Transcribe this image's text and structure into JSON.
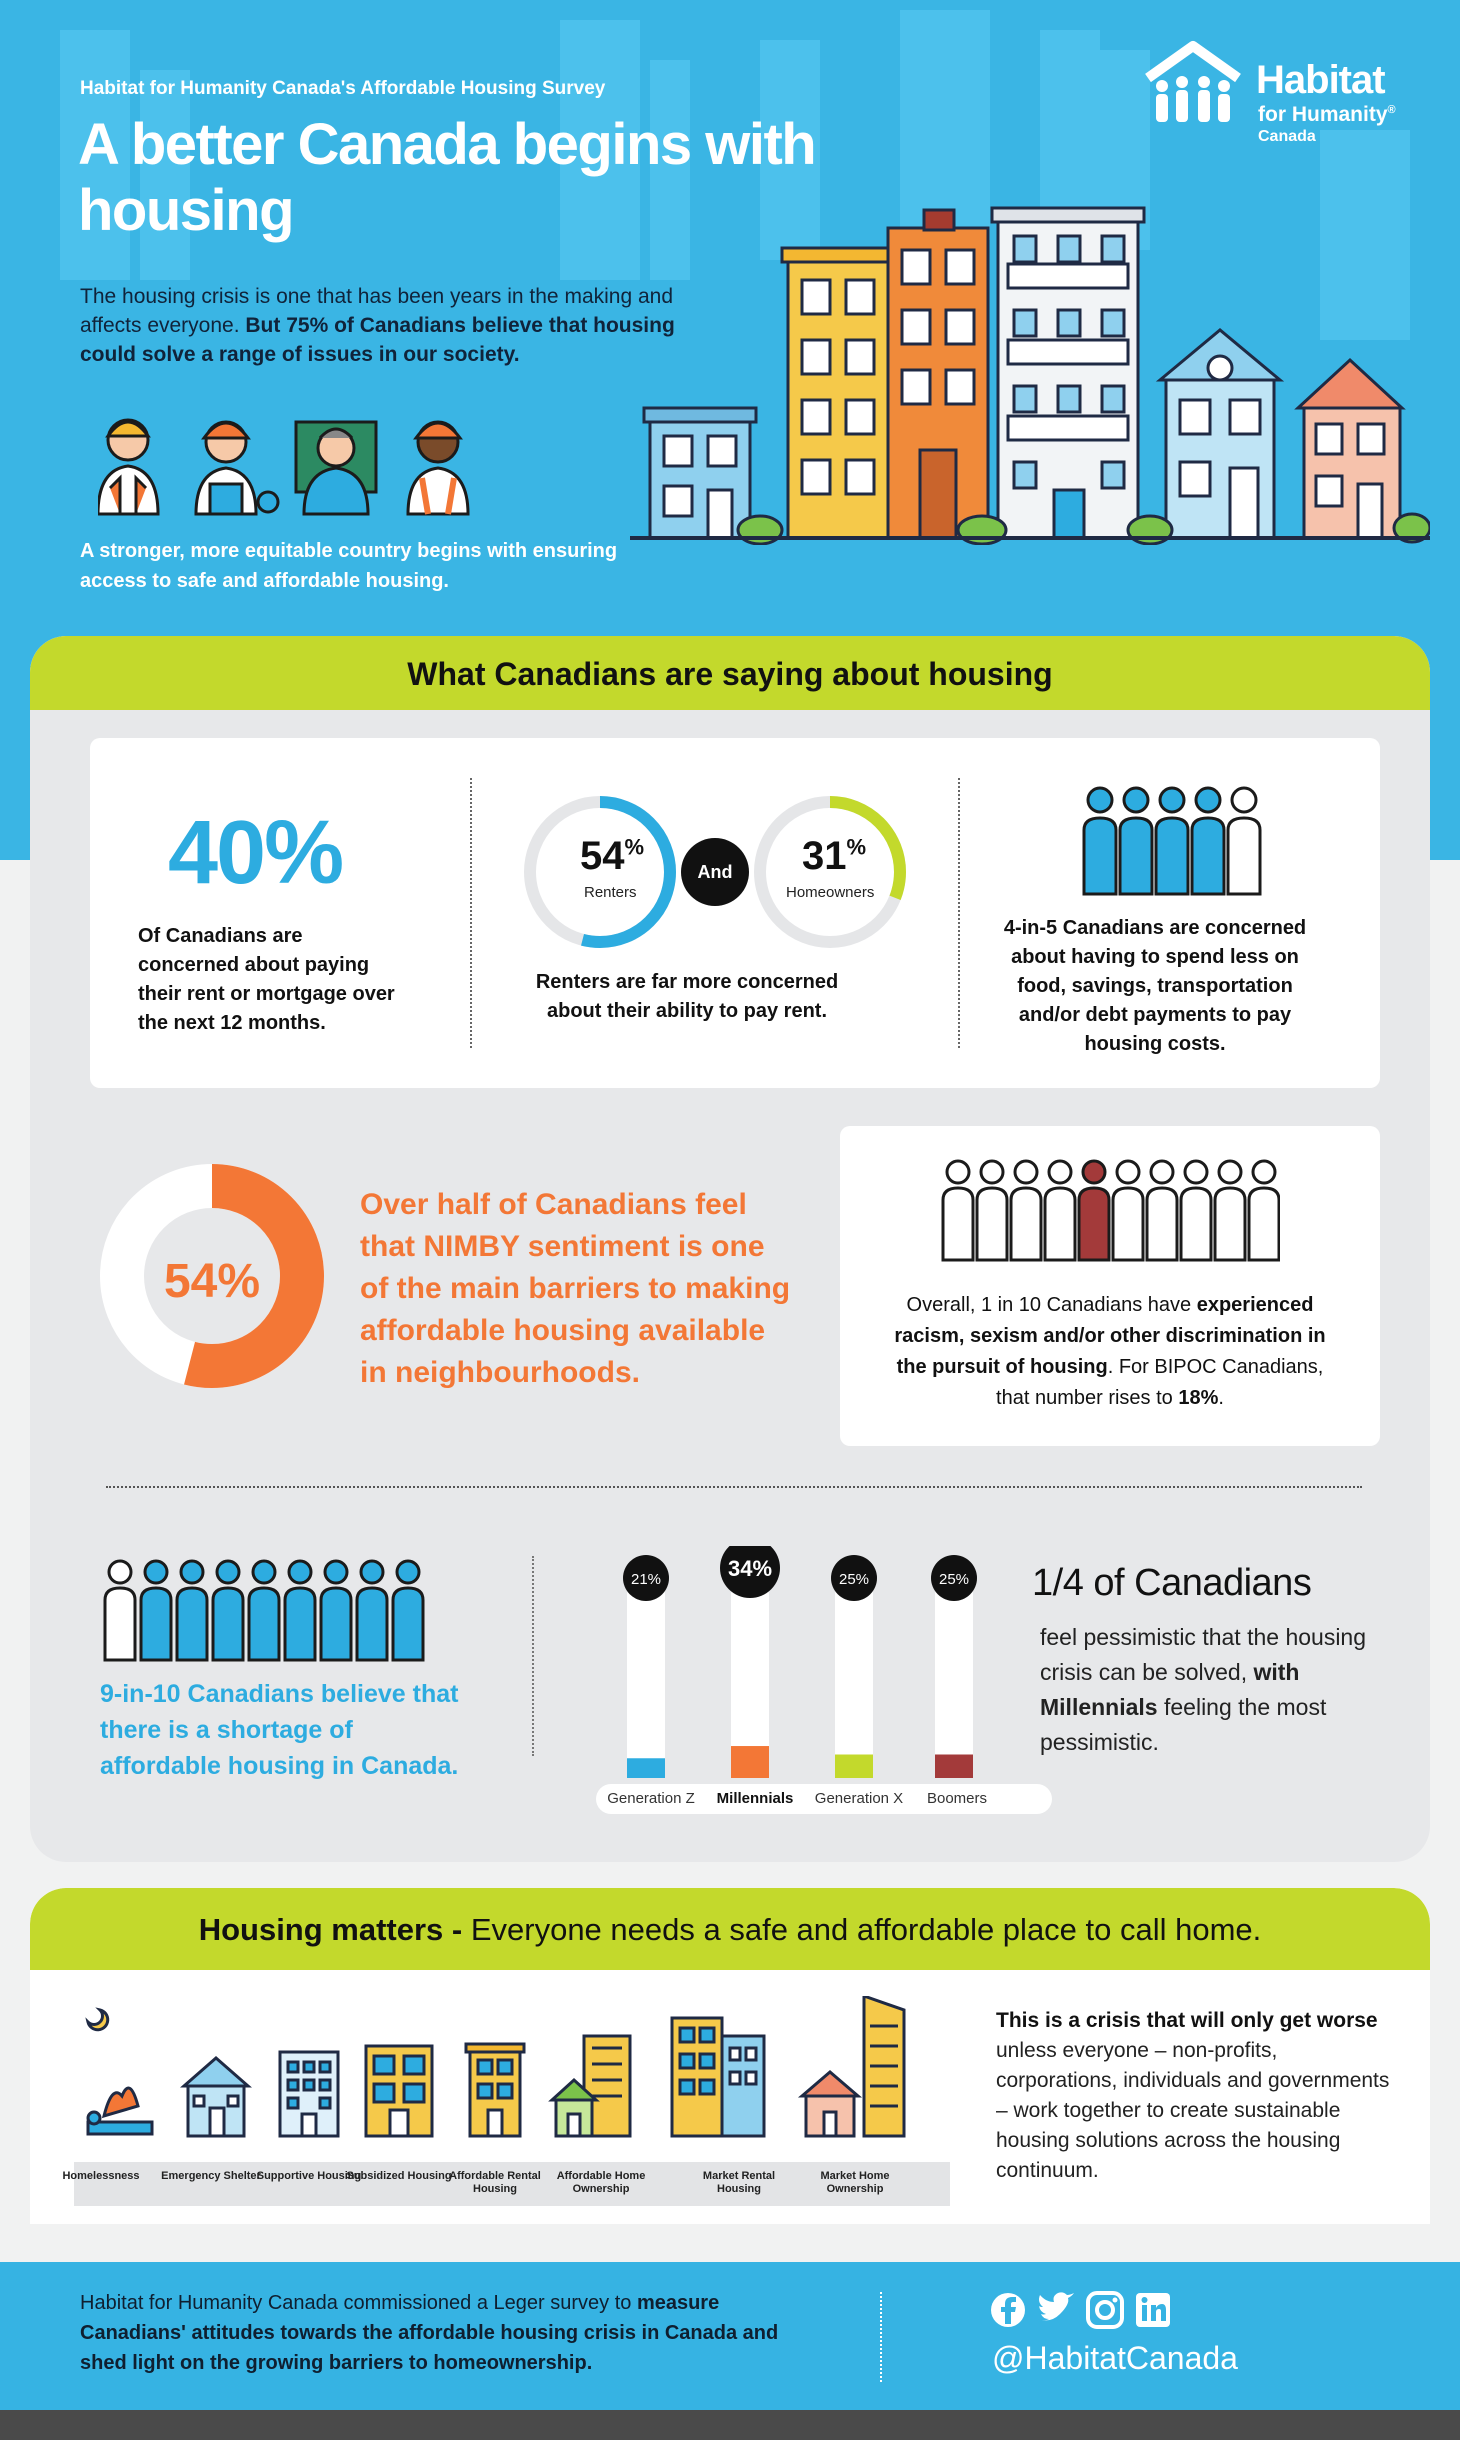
{
  "header": {
    "survey_label": "Habitat for Humanity Canada's Affordable Housing Survey",
    "title": "A better Canada begins with housing",
    "intro_plain": "The housing crisis is one that has been years in the making and affects everyone.",
    "intro_bold": "But 75% of Canadians believe that housing could solve a range of issues in our society.",
    "tagline": "A stronger, more equitable country begins with ensuring access to safe and affordable housing.",
    "logo": {
      "line1": "Habitat",
      "line2": "for Humanity",
      "reg": "®",
      "line3": "Canada"
    }
  },
  "section1": {
    "title": "What Canadians are saying about housing",
    "stat40": {
      "value": "40%",
      "text": "Of Canadians are concerned about paying their rent or mortgage over the next 12 months."
    },
    "renters": {
      "value": "54",
      "unit": "%",
      "label": "Renters",
      "fraction": 0.54
    },
    "and_label": "And",
    "homeowners": {
      "value": "31",
      "unit": "%",
      "label": "Homeowners",
      "fraction": 0.31
    },
    "rent_text": "Renters are far more concerned about their ability to pay rent.",
    "four_in_five": "4-in-5 Canadians are concerned about having to spend less on food, savings, transportation and/or debt payments to pay housing costs.",
    "nimby": {
      "value": "54%",
      "fraction": 0.54,
      "text": "Over half of Canadians feel that NIMBY sentiment is one of the main barriers to making affordable housing available in neighbourhoods."
    },
    "discrimination": {
      "t1": "Overall, 1 in 10 Canadians have ",
      "b1": "experienced racism, sexism and/or other discrimination in the pursuit of housing",
      "t2": ". For BIPOC Canadians, that number rises to ",
      "b2": "18%",
      "t3": "."
    },
    "shortage": "9-in-10 Canadians believe that there is a shortage of affordable housing in Canada.",
    "quarter": {
      "heading": "1/4 of Canadians",
      "t1": "feel pessimistic that the housing crisis can be solved, ",
      "b1": "with Millennials",
      "t2": " feeling the most pessimistic."
    }
  },
  "chart_data": {
    "type": "bar",
    "categories": [
      "Generation Z",
      "Millennials",
      "Generation X",
      "Boomers"
    ],
    "values": [
      21,
      34,
      25,
      25
    ],
    "labels": [
      "21%",
      "34%",
      "25%",
      "25%"
    ],
    "colors": [
      "#2dace0",
      "#f37736",
      "#c3d92c",
      "#a33a3a"
    ],
    "ylim": [
      0,
      100
    ]
  },
  "section2": {
    "title_bold": "Housing matters -",
    "title_rest": " Everyone needs a safe and affordable place to call home.",
    "continuum": [
      "Homelessness",
      "Emergency Shelter",
      "Supportive Housing",
      "Subsidized Housing",
      "Affordable Rental Housing",
      "Affordable Home Ownership",
      "Market Rental Housing",
      "Market Home Ownership"
    ],
    "crisis_bold": "This is a crisis that will only get worse",
    "crisis_rest": " unless everyone – non-profits, corporations, individuals and governments – work together to create sustainable housing solutions across the housing continuum."
  },
  "footer": {
    "t1": "Habitat for Humanity Canada commissioned a Leger survey to ",
    "b1": "measure Canadians' attitudes towards the affordable housing crisis in Canada and shed light on the growing barriers to homeownership.",
    "social_icons": [
      "facebook-icon",
      "twitter-icon",
      "instagram-icon",
      "linkedin-icon"
    ],
    "handle": "@HabitatCanada"
  }
}
